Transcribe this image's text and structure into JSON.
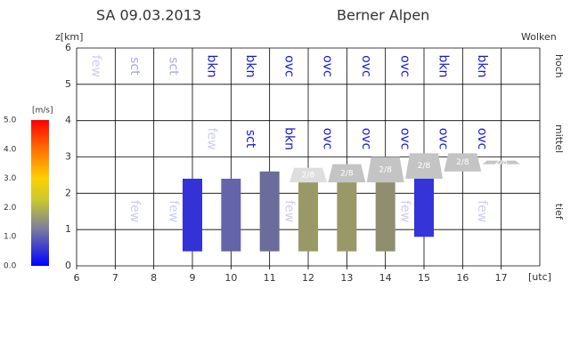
{
  "header": {
    "date": "SA 09.03.2013",
    "region": "Berner Alpen"
  },
  "chart_data": {
    "type": "cloud-profile",
    "y_label": "z[km]",
    "x_label": "[utc]",
    "cloud_label": "Wolken",
    "xlim": [
      6,
      18
    ],
    "xticks": [
      6,
      7,
      8,
      9,
      10,
      11,
      12,
      13,
      14,
      15,
      16,
      17
    ],
    "ylim": [
      0,
      6
    ],
    "yticks": [
      0,
      1,
      2,
      3,
      4,
      5,
      6
    ],
    "levels": [
      {
        "name": "hoch",
        "z": 5.5,
        "x": [
          6.5,
          7.5,
          8.5,
          9.5,
          10.5,
          11.5,
          12.5,
          13.5,
          14.5,
          15.5,
          16.5
        ],
        "labels": [
          "few",
          "sct",
          "sct",
          "bkn",
          "bkn",
          "ovc",
          "ovc",
          "ovc",
          "ovc",
          "bkn",
          "bkn"
        ],
        "colors": [
          "#ccccf2",
          "#a6a6e6",
          "#a6a6e6",
          "#1a1ad6",
          "#1a1ad6",
          "#1a1ad6",
          "#1a1ad6",
          "#1a1ad6",
          "#1a1ad6",
          "#1a1ad6",
          "#1a1ad6"
        ]
      },
      {
        "name": "mittel",
        "z": 3.5,
        "x": [
          9.5,
          10.5,
          11.5,
          12.5,
          13.5,
          14.5,
          15.5,
          16.5
        ],
        "labels": [
          "few",
          "sct",
          "bkn",
          "ovc",
          "ovc",
          "ovc",
          "ovc",
          "ovc"
        ],
        "colors": [
          "#ccccf2",
          "#1a1ad6",
          "#1a1ad6",
          "#1a1ad6",
          "#1a1ad6",
          "#1a1ad6",
          "#1a1ad6",
          "#1a1ad6"
        ]
      },
      {
        "name": "tief",
        "z": 1.5,
        "x": [
          7.5,
          8.5,
          11.5,
          14.5,
          16.5
        ],
        "labels": [
          "few",
          "few",
          "few",
          "few",
          "few"
        ],
        "colors": [
          "#ccccf2",
          "#ccccf2",
          "#ccccf2",
          "#ccccf2",
          "#ccccf2"
        ]
      }
    ],
    "columns": {
      "x": [
        9,
        10,
        11,
        12,
        13,
        14,
        15
      ],
      "bottom": [
        0.4,
        0.4,
        0.4,
        0.4,
        0.4,
        0.4,
        0.8
      ],
      "top": [
        2.4,
        2.4,
        2.6,
        2.3,
        2.3,
        2.3,
        2.4
      ],
      "colors": [
        "#3232d6",
        "#6464a8",
        "#6c6c9c",
        "#999968",
        "#999968",
        "#8f8f70",
        "#3434d8"
      ]
    },
    "layers": {
      "x": [
        12,
        13,
        14,
        15,
        16,
        17
      ],
      "base": [
        2.3,
        2.3,
        2.3,
        2.4,
        2.6,
        2.8
      ],
      "top": [
        2.7,
        2.8,
        3.0,
        3.1,
        3.1,
        2.9
      ],
      "labels": [
        "2/8",
        "2/8",
        "2/8",
        "2/8",
        "2/8",
        "2/8"
      ],
      "colors": [
        "#dedede",
        "#c4c4c4",
        "#c4c4c4",
        "#c4c4c4",
        "#c4c4c4",
        "#c4c4c4"
      ]
    },
    "colorbar": {
      "label": "[m/s]",
      "lim": [
        0,
        5
      ],
      "ticks": [
        {
          "value": 0,
          "label": "0.0"
        },
        {
          "value": 1,
          "label": "1.0"
        },
        {
          "value": 2,
          "label": "2.0"
        },
        {
          "value": 3,
          "label": "3.0"
        },
        {
          "value": 4,
          "label": "4.0"
        },
        {
          "value": 5,
          "label": "5.0"
        }
      ]
    }
  }
}
